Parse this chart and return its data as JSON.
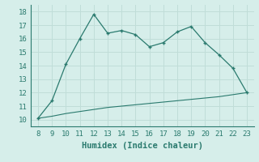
{
  "x": [
    8,
    9,
    10,
    11,
    12,
    13,
    14,
    15,
    16,
    17,
    18,
    19,
    20,
    21,
    22,
    23
  ],
  "y_main": [
    10.1,
    11.4,
    14.1,
    16.0,
    17.8,
    16.4,
    16.6,
    16.3,
    15.4,
    15.7,
    16.5,
    16.9,
    15.7,
    14.8,
    13.8,
    12.0
  ],
  "y_base": [
    10.1,
    10.25,
    10.45,
    10.6,
    10.75,
    10.9,
    11.0,
    11.1,
    11.2,
    11.3,
    11.4,
    11.5,
    11.6,
    11.7,
    11.85,
    12.0
  ],
  "line_color": "#2a7a6e",
  "bg_color": "#d6eeea",
  "grid_color": "#c0ddd8",
  "xlabel": "Humidex (Indice chaleur)",
  "xlim": [
    7.5,
    23.5
  ],
  "ylim": [
    9.5,
    18.5
  ],
  "xticks": [
    8,
    9,
    10,
    11,
    12,
    13,
    14,
    15,
    16,
    17,
    18,
    19,
    20,
    21,
    22,
    23
  ],
  "yticks": [
    10,
    11,
    12,
    13,
    14,
    15,
    16,
    17,
    18
  ],
  "font_size": 6.5,
  "label_font_size": 7.5
}
